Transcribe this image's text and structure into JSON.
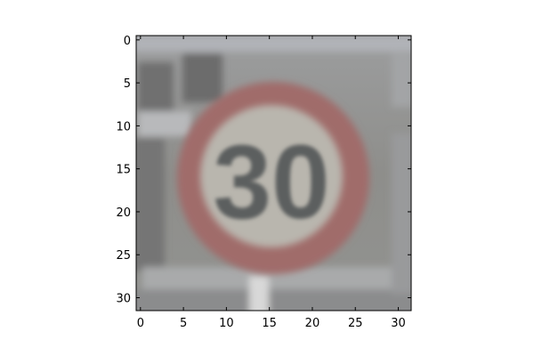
{
  "image": {
    "subject": "speed-limit-sign",
    "sign_text": "30",
    "pixel_grid": [
      32,
      32
    ]
  },
  "axes": {
    "x_ticks": [
      "0",
      "5",
      "10",
      "15",
      "20",
      "25",
      "30"
    ],
    "y_ticks": [
      "0",
      "5",
      "10",
      "15",
      "20",
      "25",
      "30"
    ]
  },
  "colors": {
    "background": "#8e8e8b",
    "sign_face": "#b9b6ae",
    "sign_ring": "#a06c6a",
    "digits": "#5c5e5e",
    "pole": "#c0c1c3"
  }
}
